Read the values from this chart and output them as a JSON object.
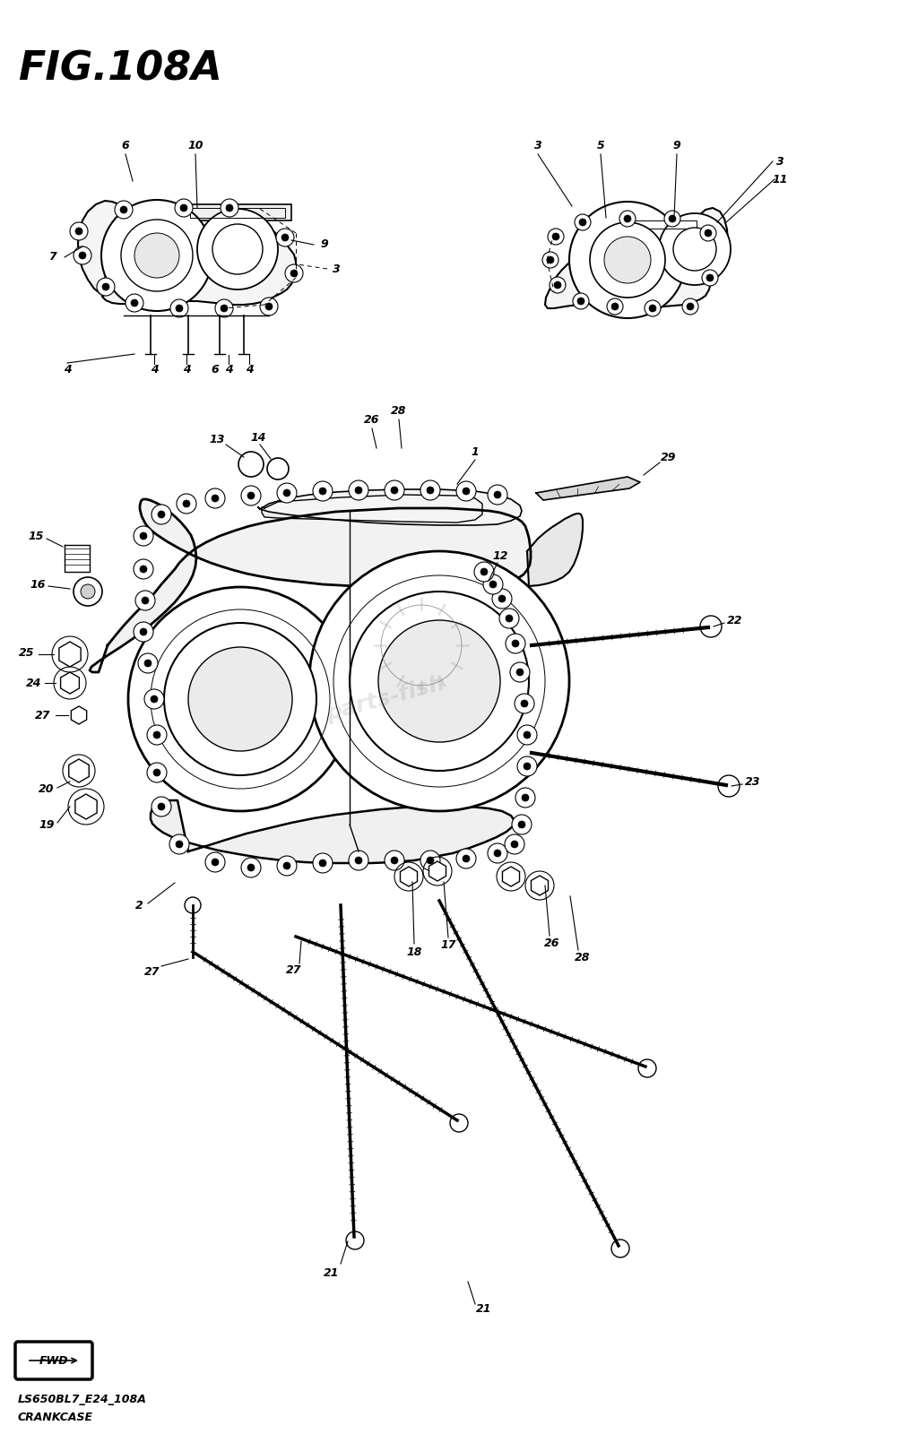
{
  "title": "FIG.108A",
  "subtitle1": "LS650BL7_E24_108A",
  "subtitle2": "CRANKCASE",
  "background": "#ffffff",
  "fig_width": 10.14,
  "fig_height": 16.0,
  "fwd_label": "FWD"
}
